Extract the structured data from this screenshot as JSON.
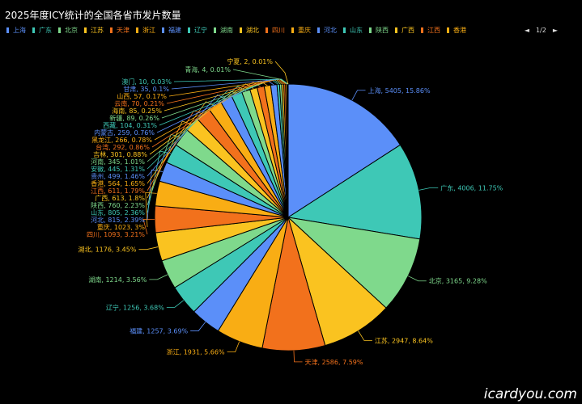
{
  "title": "2025年度ICY统计的全国各省市发片数量",
  "legend_pager": {
    "prev": "◄",
    "page": "1/2",
    "next": "►"
  },
  "watermark": "icardyou.com",
  "chart_data": {
    "type": "pie",
    "title": "2025年度ICY统计的全国各省市发片数量",
    "legend_position": "top",
    "slices": [
      {
        "name": "上海",
        "value": 5405,
        "label": "上海, 5405, 15.86%",
        "color": "#5b8ff9"
      },
      {
        "name": "广东",
        "value": 4006,
        "label": "广东, 4006, 11.75%",
        "color": "#3ec8b6"
      },
      {
        "name": "北京",
        "value": 3165,
        "label": "北京, 3165, 9.28%",
        "color": "#7fd98c"
      },
      {
        "name": "江苏",
        "value": 2947,
        "label": "江苏, 2947, 8.64%",
        "color": "#fac320"
      },
      {
        "name": "天津",
        "value": 2586,
        "label": "天津, 2586, 7.59%",
        "color": "#f2711c"
      },
      {
        "name": "浙江",
        "value": 1931,
        "label": "浙江, 1931, 5.66%",
        "color": "#f9ad14"
      },
      {
        "name": "福建",
        "value": 1257,
        "label": "福建, 1257, 3.69%",
        "color": "#5b8ff9"
      },
      {
        "name": "辽宁",
        "value": 1256,
        "label": "辽宁, 1256, 3.68%",
        "color": "#3ec8b6"
      },
      {
        "name": "湖南",
        "value": 1214,
        "label": "湖南, 1214, 3.56%",
        "color": "#7fd98c"
      },
      {
        "name": "湖北",
        "value": 1176,
        "label": "湖北, 1176, 3.45%",
        "color": "#fac320"
      },
      {
        "name": "四川",
        "value": 1093,
        "label": "四川, 1093, 3.21%",
        "color": "#f2711c"
      },
      {
        "name": "重庆",
        "value": 1023,
        "label": "重庆, 1023, 3%",
        "color": "#f9ad14"
      },
      {
        "name": "河北",
        "value": 815,
        "label": "河北, 815, 2.39%",
        "color": "#5b8ff9"
      },
      {
        "name": "山东",
        "value": 805,
        "label": "山东, 805, 2.36%",
        "color": "#3ec8b6"
      },
      {
        "name": "陕西",
        "value": 760,
        "label": "陕西, 760, 2.23%",
        "color": "#7fd98c"
      },
      {
        "name": "广西",
        "value": 613,
        "label": "广西, 613, 1.8%",
        "color": "#fac320"
      },
      {
        "name": "江西",
        "value": 611,
        "label": "江西, 611, 1.79%",
        "color": "#f2711c"
      },
      {
        "name": "香港",
        "value": 564,
        "label": "香港, 564, 1.65%",
        "color": "#f9ad14"
      },
      {
        "name": "贵州",
        "value": 499,
        "label": "贵州, 499, 1.46%",
        "color": "#5b8ff9"
      },
      {
        "name": "安徽",
        "value": 445,
        "label": "安徽, 445, 1.31%",
        "color": "#3ec8b6"
      },
      {
        "name": "河南",
        "value": 345,
        "label": "河南, 345, 1.01%",
        "color": "#7fd98c"
      },
      {
        "name": "吉林",
        "value": 301,
        "label": "吉林, 301, 0.88%",
        "color": "#fac320"
      },
      {
        "name": "台湾",
        "value": 292,
        "label": "台湾, 292, 0.86%",
        "color": "#f2711c"
      },
      {
        "name": "黑龙江",
        "value": 266,
        "label": "黑龙江, 266, 0.78%",
        "color": "#f9ad14"
      },
      {
        "name": "内蒙古",
        "value": 259,
        "label": "内蒙古, 259, 0.76%",
        "color": "#5b8ff9"
      },
      {
        "name": "西藏",
        "value": 104,
        "label": "西藏, 104, 0.31%",
        "color": "#3ec8b6"
      },
      {
        "name": "新疆",
        "value": 89,
        "label": "新疆, 89, 0.26%",
        "color": "#7fd98c"
      },
      {
        "name": "海南",
        "value": 85,
        "label": "海南, 85, 0.25%",
        "color": "#fac320"
      },
      {
        "name": "云南",
        "value": 70,
        "label": "云南, 70, 0.21%",
        "color": "#f2711c"
      },
      {
        "name": "山西",
        "value": 57,
        "label": "山西, 57, 0.17%",
        "color": "#f9ad14"
      },
      {
        "name": "甘肃",
        "value": 35,
        "label": "甘肃, 35, 0.1%",
        "color": "#5b8ff9"
      },
      {
        "name": "澳门",
        "value": 10,
        "label": "澳门, 10, 0.03%",
        "color": "#3ec8b6"
      },
      {
        "name": "青海",
        "value": 4,
        "label": "青海, 4, 0.01%",
        "color": "#7fd98c"
      },
      {
        "name": "宁夏",
        "value": 2,
        "label": "宁夏, 2, 0.01%",
        "color": "#fac320"
      }
    ],
    "legend_visible": [
      "上海",
      "广东",
      "北京",
      "江苏",
      "天津",
      "浙江",
      "福建",
      "辽宁",
      "湖南",
      "湖北",
      "四川",
      "重庆",
      "河北",
      "山东",
      "陕西",
      "广西",
      "江西",
      "香港"
    ]
  }
}
